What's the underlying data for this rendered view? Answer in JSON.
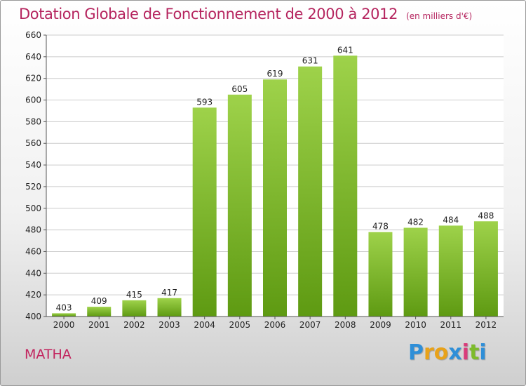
{
  "header": {
    "title": "Dotation Globale de Fonctionnement de 2000 à 2012",
    "subtitle": "(en milliers d'€)"
  },
  "footer": {
    "commune": "MATHA",
    "logo_letters": [
      "P",
      "r",
      "o",
      "x",
      "i",
      "t",
      "i"
    ],
    "logo_colors": [
      "#2f8fd8",
      "#e8a21a",
      "#e8a21a",
      "#2f8fd8",
      "#d93c7a",
      "#7dbb2c",
      "#2f8fd8"
    ]
  },
  "chart_data": {
    "type": "bar",
    "categories": [
      "2000",
      "2001",
      "2002",
      "2003",
      "2004",
      "2005",
      "2006",
      "2007",
      "2008",
      "2009",
      "2010",
      "2011",
      "2012"
    ],
    "values": [
      403,
      409,
      415,
      417,
      593,
      605,
      619,
      631,
      641,
      478,
      482,
      484,
      488
    ],
    "title": "Dotation Globale de Fonctionnement de 2000 à 2012",
    "subtitle": "(en milliers d'€)",
    "xlabel": "",
    "ylabel": "",
    "ylim": [
      400,
      660
    ],
    "yticks": [
      400,
      420,
      440,
      460,
      480,
      500,
      520,
      540,
      560,
      580,
      600,
      620,
      640,
      660
    ],
    "grid": true,
    "bar_color_top": "#9ed24a",
    "bar_color_bottom": "#5e9a12"
  }
}
